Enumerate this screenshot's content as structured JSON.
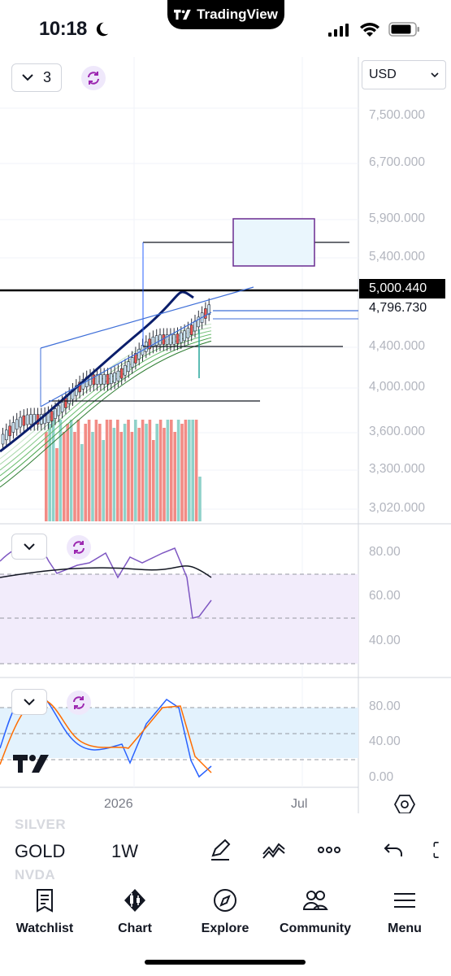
{
  "status_bar": {
    "time": "10:18",
    "app_pill": "TradingView",
    "icons": [
      "moon-icon",
      "signal-icon",
      "wifi-icon",
      "battery-icon"
    ]
  },
  "chart": {
    "interval_value": "3",
    "currency": "USD",
    "price_axis": [
      "7,500.000",
      "6,700.000",
      "5,900.000",
      "5,400.000",
      "4,400.000",
      "4,000.000",
      "3,600.000",
      "3,300.000",
      "3,020.000"
    ],
    "price_tag_black": "5,000.440",
    "price_tag_current": "4,796.730",
    "rsi_axis": [
      "80.00",
      "60.00",
      "40.00"
    ],
    "stoch_axis": [
      "80.00",
      "40.00",
      "0.00"
    ],
    "time_axis": [
      "2026",
      "Jul"
    ],
    "colors": {
      "up": "#26a69a",
      "down": "#ef5350",
      "ma": "#0b1e6b",
      "rsi": "#7e57c2",
      "stoch_k": "#2962ff",
      "stoch_d": "#ff6d00"
    }
  },
  "symbol_bar": {
    "prev_symbol": "SILVER",
    "symbol": "GOLD",
    "next_symbol": "NVDA",
    "timeframe": "1W",
    "tools": [
      "pen-icon",
      "indicators-icon",
      "more-icon",
      "undo-icon"
    ]
  },
  "nav": [
    {
      "label": "Watchlist",
      "icon": "watchlist-icon"
    },
    {
      "label": "Chart",
      "icon": "chart-icon"
    },
    {
      "label": "Explore",
      "icon": "compass-icon"
    },
    {
      "label": "Community",
      "icon": "community-icon"
    },
    {
      "label": "Menu",
      "icon": "menu-icon"
    }
  ]
}
